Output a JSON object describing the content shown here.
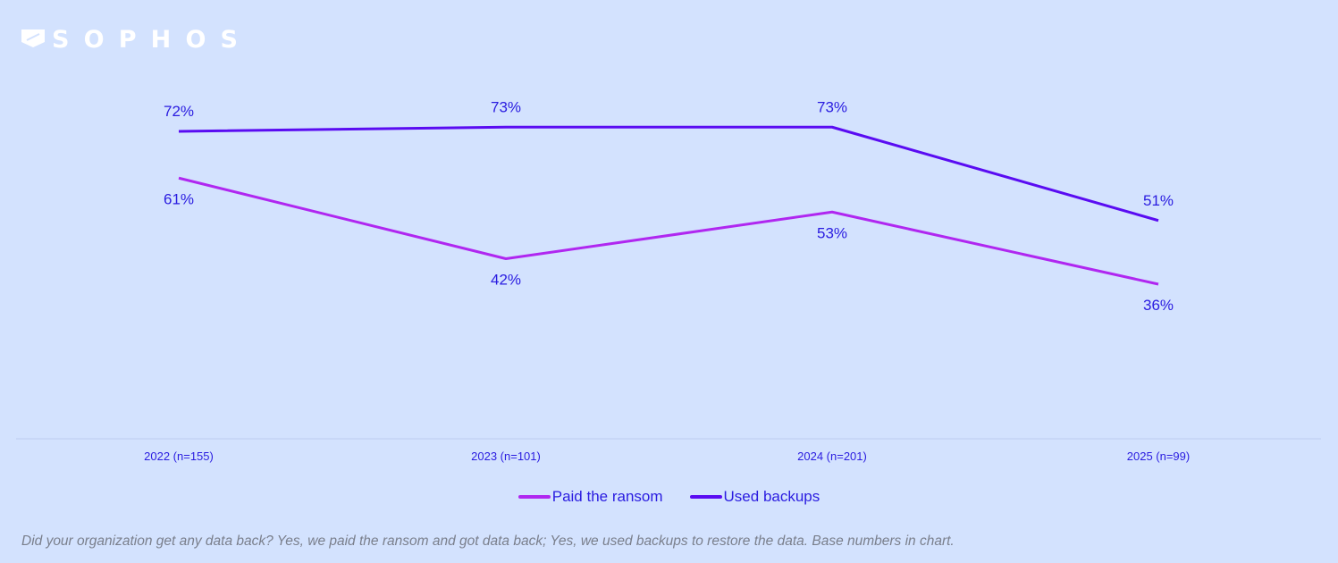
{
  "logo": {
    "text": "SOPHOS"
  },
  "chart_data": {
    "type": "line",
    "categories": [
      "2022 (n=155)",
      "2023 (n=101)",
      "2024 (n=201)",
      "2025 (n=99)"
    ],
    "series": [
      {
        "name": "Paid the ransom",
        "values": [
          61,
          42,
          53,
          36
        ],
        "color": "#b027f0",
        "labels": [
          "61%",
          "42%",
          "53%",
          "36%"
        ]
      },
      {
        "name": "Used backups",
        "values": [
          72,
          73,
          73,
          51
        ],
        "color": "#5a0cf2",
        "labels": [
          "72%",
          "73%",
          "73%",
          "51%"
        ]
      }
    ],
    "ylim": [
      0,
      100
    ],
    "grid": false,
    "legend": "bottom",
    "label_color": "#2a1ce0"
  },
  "footnote": "Did your organization get any data back? Yes, we paid the ransom and got data back; Yes, we used backups to restore the data. Base numbers in chart."
}
